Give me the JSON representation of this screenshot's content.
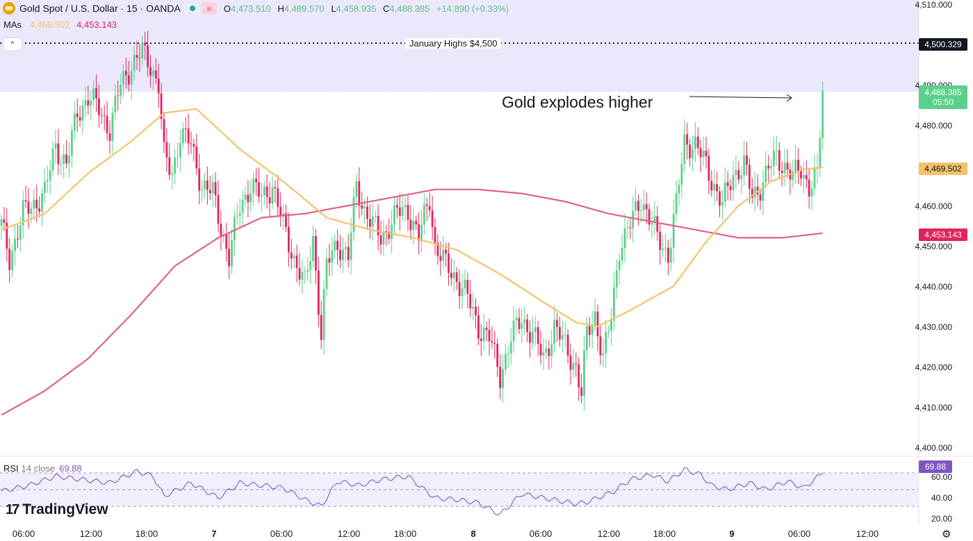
{
  "header": {
    "symbol": "Gold Spot / U.S. Dollar · 15 · OANDA",
    "ohlc": [
      {
        "key": "O",
        "value": "4,473.510"
      },
      {
        "key": "H",
        "value": "4,489.570"
      },
      {
        "key": "L",
        "value": "4,458.935"
      },
      {
        "key": "C",
        "value": "4,488.385"
      }
    ],
    "change": "+14.890 (+0.33%)",
    "wave_glyph": "≈"
  },
  "mas": {
    "label": "MAs",
    "fast": "4,469.502",
    "slow": "4,453.143"
  },
  "collapse_glyph": "⌃",
  "annotations": {
    "january_highs": "January Highs $4,500",
    "gold_explodes": "Gold explodes higher"
  },
  "price_axis": {
    "ticks": [
      "4,510.000",
      "4,490.000",
      "4,480.000",
      "4,460.000",
      "4,450.000",
      "4,440.000",
      "4,430.000",
      "4,420.000",
      "4,410.000",
      "4,400.000"
    ],
    "tags": {
      "jan_high": "4,500.329",
      "last_price": "4,488.385",
      "countdown": "05:50",
      "fast_ma": "4,469.502",
      "slow_ma": "4,453.143"
    }
  },
  "rsi": {
    "title": "RSI",
    "params": "14 close",
    "value": "69.88",
    "ticks": [
      "60.00",
      "40.00",
      "20.00"
    ],
    "tag": "69.88"
  },
  "time_axis": [
    {
      "label": "06:00",
      "bold": false
    },
    {
      "label": "12:00",
      "bold": false
    },
    {
      "label": "18:00",
      "bold": false
    },
    {
      "label": "7",
      "bold": true
    },
    {
      "label": "06:00",
      "bold": false
    },
    {
      "label": "12:00",
      "bold": false
    },
    {
      "label": "18:00",
      "bold": false
    },
    {
      "label": "8",
      "bold": true
    },
    {
      "label": "06:00",
      "bold": false
    },
    {
      "label": "12:00",
      "bold": false
    },
    {
      "label": "18:00",
      "bold": false
    },
    {
      "label": "9",
      "bold": true
    },
    {
      "label": "06:00",
      "bold": false
    },
    {
      "label": "12:00",
      "bold": false
    }
  ],
  "brand": {
    "logo_mark": "17",
    "name": "TradingView"
  },
  "settings_icon": "⚙",
  "colors": {
    "up": "#5bd08a",
    "down": "#e0245e",
    "fast_ma": "#f3c36b",
    "slow_ma": "#e0608a",
    "rsi_line": "#7e57c2",
    "highlight_zone": "#ebe8fb"
  },
  "chart_data": {
    "type": "candlestick",
    "timeframe": "15",
    "yrange": [
      4400,
      4510
    ],
    "keypoints_close": [
      [
        0,
        4455
      ],
      [
        3,
        4447
      ],
      [
        8,
        4458
      ],
      [
        16,
        4463
      ],
      [
        20,
        4475
      ],
      [
        24,
        4470
      ],
      [
        28,
        4483
      ],
      [
        32,
        4487
      ],
      [
        36,
        4484
      ],
      [
        40,
        4479
      ],
      [
        44,
        4490
      ],
      [
        48,
        4495
      ],
      [
        52,
        4498
      ],
      [
        55,
        4495
      ],
      [
        58,
        4490
      ],
      [
        60,
        4472
      ],
      [
        63,
        4468
      ],
      [
        66,
        4478
      ],
      [
        70,
        4475
      ],
      [
        74,
        4465
      ],
      [
        78,
        4463
      ],
      [
        81,
        4455
      ],
      [
        84,
        4447
      ],
      [
        88,
        4460
      ],
      [
        92,
        4465
      ],
      [
        96,
        4462
      ],
      [
        100,
        4465
      ],
      [
        104,
        4455
      ],
      [
        108,
        4447
      ],
      [
        112,
        4440
      ],
      [
        115,
        4452
      ],
      [
        118,
        4428
      ],
      [
        120,
        4445
      ],
      [
        124,
        4451
      ],
      [
        128,
        4447
      ],
      [
        131,
        4465
      ],
      [
        134,
        4459
      ],
      [
        137,
        4455
      ],
      [
        140,
        4452
      ],
      [
        143,
        4455
      ],
      [
        146,
        4458
      ],
      [
        150,
        4459
      ],
      [
        154,
        4452
      ],
      [
        158,
        4462
      ],
      [
        160,
        4450
      ],
      [
        164,
        4445
      ],
      [
        168,
        4442
      ],
      [
        172,
        4437
      ],
      [
        176,
        4430
      ],
      [
        180,
        4427
      ],
      [
        184,
        4418
      ],
      [
        188,
        4427
      ],
      [
        192,
        4432
      ],
      [
        196,
        4428
      ],
      [
        200,
        4422
      ],
      [
        204,
        4430
      ],
      [
        208,
        4425
      ],
      [
        212,
        4420
      ],
      [
        214,
        4413
      ],
      [
        216,
        4428
      ],
      [
        219,
        4433
      ],
      [
        222,
        4422
      ],
      [
        225,
        4432
      ],
      [
        228,
        4450
      ],
      [
        232,
        4455
      ],
      [
        236,
        4462
      ],
      [
        239,
        4457
      ],
      [
        242,
        4452
      ],
      [
        246,
        4448
      ],
      [
        249,
        4460
      ],
      [
        252,
        4476
      ],
      [
        256,
        4475
      ],
      [
        260,
        4470
      ],
      [
        263,
        4465
      ],
      [
        266,
        4460
      ],
      [
        270,
        4468
      ],
      [
        274,
        4470
      ],
      [
        277,
        4462
      ],
      [
        280,
        4465
      ],
      [
        283,
        4469
      ],
      [
        286,
        4472
      ],
      [
        289,
        4470
      ],
      [
        292,
        4467
      ],
      [
        295,
        4469
      ],
      [
        298,
        4465
      ],
      [
        301,
        4467
      ],
      [
        303,
        4488
      ]
    ],
    "ma_fast_points": [
      [
        0,
        4454
      ],
      [
        16,
        4458
      ],
      [
        32,
        4468
      ],
      [
        48,
        4476
      ],
      [
        60,
        4483
      ],
      [
        72,
        4484
      ],
      [
        88,
        4474
      ],
      [
        104,
        4466
      ],
      [
        120,
        4457
      ],
      [
        136,
        4454
      ],
      [
        152,
        4452
      ],
      [
        168,
        4449
      ],
      [
        184,
        4443
      ],
      [
        200,
        4436
      ],
      [
        212,
        4431
      ],
      [
        220,
        4430
      ],
      [
        232,
        4434
      ],
      [
        248,
        4440
      ],
      [
        260,
        4451
      ],
      [
        272,
        4460
      ],
      [
        284,
        4466
      ],
      [
        296,
        4469
      ],
      [
        303,
        4469.502
      ]
    ],
    "ma_slow_points": [
      [
        0,
        4408
      ],
      [
        16,
        4414
      ],
      [
        32,
        4422
      ],
      [
        48,
        4433
      ],
      [
        64,
        4445
      ],
      [
        80,
        4452
      ],
      [
        96,
        4457
      ],
      [
        112,
        4458
      ],
      [
        128,
        4460
      ],
      [
        144,
        4462
      ],
      [
        160,
        4464
      ],
      [
        176,
        4464
      ],
      [
        192,
        4463
      ],
      [
        208,
        4461
      ],
      [
        224,
        4458
      ],
      [
        240,
        4456
      ],
      [
        256,
        4454
      ],
      [
        272,
        4452
      ],
      [
        288,
        4452
      ],
      [
        303,
        4453.143
      ]
    ],
    "rsi_range": [
      10,
      85
    ],
    "rsi_levels": [
      70,
      50,
      30
    ],
    "rsi_points": [
      [
        0,
        48
      ],
      [
        10,
        55
      ],
      [
        20,
        66
      ],
      [
        30,
        62
      ],
      [
        40,
        58
      ],
      [
        50,
        72
      ],
      [
        56,
        66
      ],
      [
        60,
        42
      ],
      [
        70,
        58
      ],
      [
        80,
        40
      ],
      [
        88,
        58
      ],
      [
        96,
        55
      ],
      [
        104,
        52
      ],
      [
        112,
        38
      ],
      [
        118,
        30
      ],
      [
        124,
        60
      ],
      [
        132,
        55
      ],
      [
        140,
        62
      ],
      [
        150,
        66
      ],
      [
        156,
        50
      ],
      [
        160,
        40
      ],
      [
        168,
        38
      ],
      [
        176,
        34
      ],
      [
        184,
        20
      ],
      [
        192,
        45
      ],
      [
        200,
        40
      ],
      [
        212,
        33
      ],
      [
        216,
        35
      ],
      [
        226,
        48
      ],
      [
        232,
        62
      ],
      [
        240,
        68
      ],
      [
        246,
        60
      ],
      [
        252,
        74
      ],
      [
        258,
        68
      ],
      [
        262,
        55
      ],
      [
        268,
        50
      ],
      [
        276,
        58
      ],
      [
        282,
        50
      ],
      [
        290,
        60
      ],
      [
        296,
        52
      ],
      [
        300,
        62
      ],
      [
        303,
        69.88
      ]
    ],
    "january_high": 4500.329,
    "last_price": 4488.385
  }
}
